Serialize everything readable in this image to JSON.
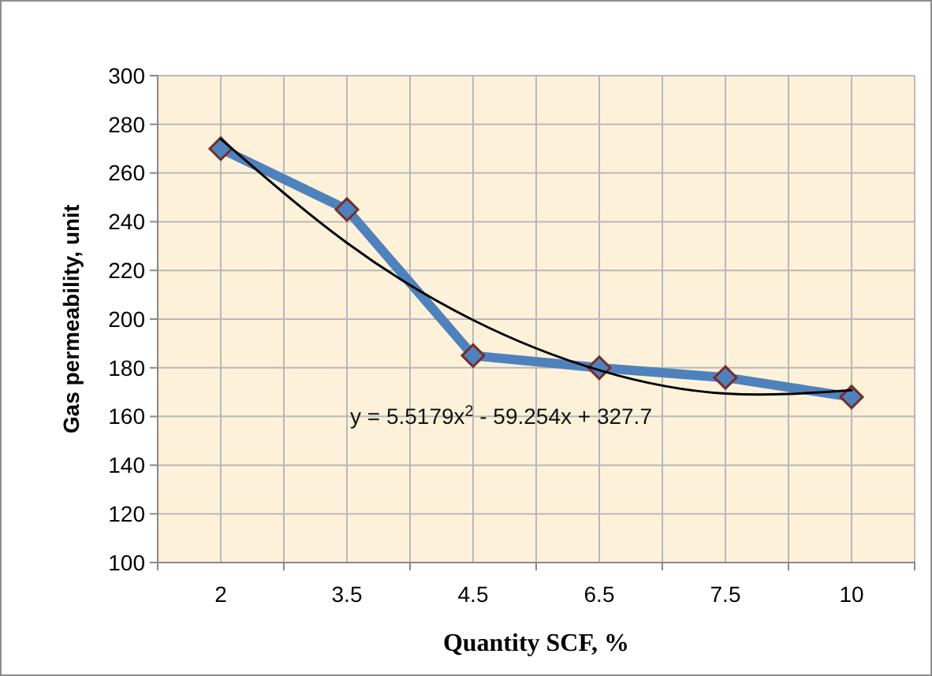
{
  "chart_data": {
    "type": "line",
    "xlabel": "Quantity SCF, %",
    "ylabel": "Gas permeability, unit",
    "categories": [
      "2",
      "3.5",
      "4.5",
      "6.5",
      "7.5",
      "10"
    ],
    "series": [
      {
        "color": "#4f81bd",
        "values": [
          270,
          245,
          185,
          180,
          176,
          168
        ],
        "marker": "diamond"
      },
      {
        "type": "line",
        "color": "#000000",
        "values": [
          274.0,
          231.3,
          199.6,
          179.0,
          169.4,
          170.8
        ],
        "marker": "none"
      }
    ],
    "ylim": [
      100,
      300
    ],
    "yticks": [
      100,
      120,
      140,
      160,
      180,
      200,
      220,
      240,
      260,
      280,
      300
    ],
    "grid": true,
    "annotations": [
      "y = 5.5179x$^{2}$ - 59.254x + 327.7"
    ]
  }
}
